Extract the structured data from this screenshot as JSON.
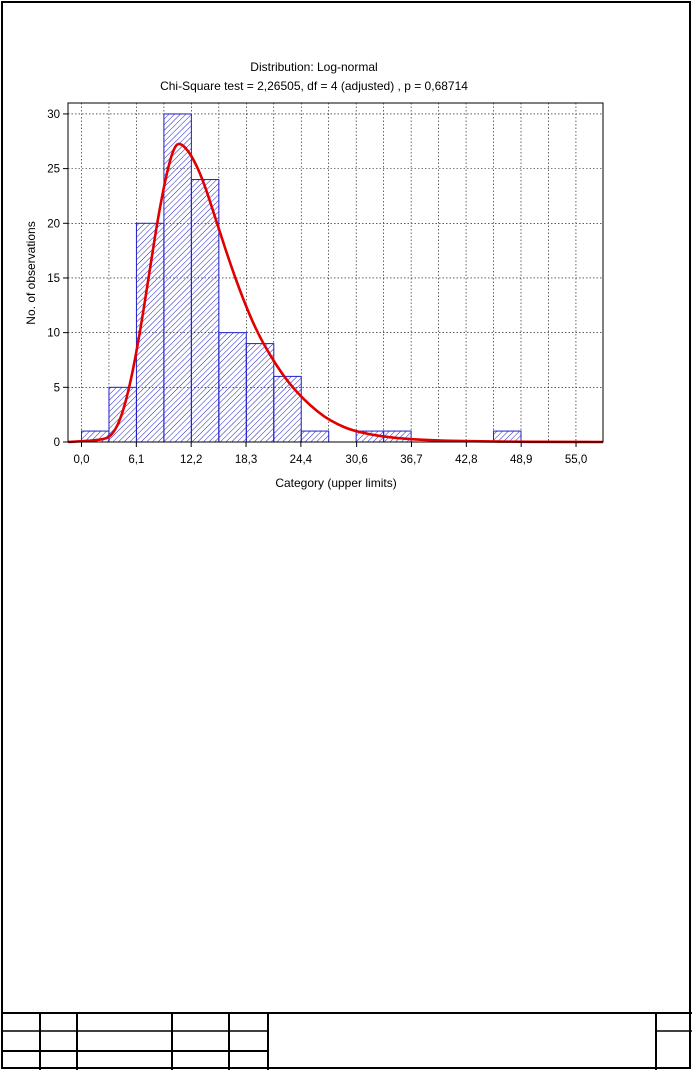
{
  "chart_data": {
    "type": "histogram",
    "title": "Distribution: Log-normal",
    "subtitle": "Chi-Square test = 2,26505, df = 4 (adjusted) , p = 0,68714",
    "xlabel": "Category (upper limits)",
    "ylabel": "No. of observations",
    "xlim": [
      -1.5,
      58.0
    ],
    "ylim": [
      0,
      31
    ],
    "x_ticks": [
      0.0,
      6.1,
      12.2,
      18.3,
      24.4,
      30.6,
      36.7,
      42.8,
      48.9,
      55.0
    ],
    "x_tick_labels": [
      "0,0",
      "6,1",
      "12,2",
      "18,3",
      "24,4",
      "30,6",
      "36,7",
      "42,8",
      "48,9",
      "55,0"
    ],
    "y_ticks": [
      0,
      5,
      10,
      15,
      20,
      25,
      30
    ],
    "grid": true,
    "bin_width": 3.055,
    "bars": [
      {
        "x0": 0.0,
        "x1": 3.055,
        "value": 1
      },
      {
        "x0": 3.055,
        "x1": 6.11,
        "value": 5
      },
      {
        "x0": 6.11,
        "x1": 9.165,
        "value": 20
      },
      {
        "x0": 9.165,
        "x1": 12.22,
        "value": 30
      },
      {
        "x0": 12.22,
        "x1": 15.275,
        "value": 24
      },
      {
        "x0": 15.275,
        "x1": 18.33,
        "value": 10
      },
      {
        "x0": 18.33,
        "x1": 21.385,
        "value": 9
      },
      {
        "x0": 21.385,
        "x1": 24.44,
        "value": 6
      },
      {
        "x0": 24.44,
        "x1": 27.495,
        "value": 1
      },
      {
        "x0": 27.495,
        "x1": 30.55,
        "value": 0
      },
      {
        "x0": 30.55,
        "x1": 33.605,
        "value": 1
      },
      {
        "x0": 33.605,
        "x1": 36.66,
        "value": 1
      },
      {
        "x0": 36.66,
        "x1": 39.715,
        "value": 0
      },
      {
        "x0": 39.715,
        "x1": 42.77,
        "value": 0
      },
      {
        "x0": 42.77,
        "x1": 45.825,
        "value": 0
      },
      {
        "x0": 45.825,
        "x1": 48.88,
        "value": 1
      },
      {
        "x0": 48.88,
        "x1": 51.935,
        "value": 0
      },
      {
        "x0": 51.935,
        "x1": 54.99,
        "value": 0
      }
    ],
    "fitted_curve": {
      "distribution": "log-normal",
      "points": [
        [
          -1.5,
          0
        ],
        [
          2.5,
          0.2
        ],
        [
          3.5,
          0.7
        ],
        [
          4.5,
          2.4
        ],
        [
          5.5,
          5.6
        ],
        [
          6.5,
          10.0
        ],
        [
          7.5,
          15.2
        ],
        [
          8.5,
          20.5
        ],
        [
          9.5,
          24.7
        ],
        [
          10.3,
          27.0
        ],
        [
          11.0,
          27.4
        ],
        [
          12.2,
          26.3
        ],
        [
          13.5,
          24.0
        ],
        [
          15.0,
          20.2
        ],
        [
          16.5,
          16.4
        ],
        [
          18.0,
          13.0
        ],
        [
          19.5,
          10.1
        ],
        [
          21.0,
          7.9
        ],
        [
          22.5,
          6.0
        ],
        [
          24.0,
          4.5
        ],
        [
          25.5,
          3.3
        ],
        [
          27.0,
          2.3
        ],
        [
          28.5,
          1.6
        ],
        [
          30.0,
          1.1
        ],
        [
          32.0,
          0.7
        ],
        [
          34.0,
          0.45
        ],
        [
          36.0,
          0.3
        ],
        [
          38.0,
          0.2
        ],
        [
          40.0,
          0.13
        ],
        [
          42.0,
          0.09
        ],
        [
          45.0,
          0.05
        ],
        [
          48.0,
          0.03
        ],
        [
          52.0,
          0.01
        ],
        [
          58.0,
          0
        ]
      ]
    },
    "colors": {
      "bar_stroke": "#2020c8",
      "hatch": "#2020c8",
      "curve": "#e00000"
    }
  }
}
